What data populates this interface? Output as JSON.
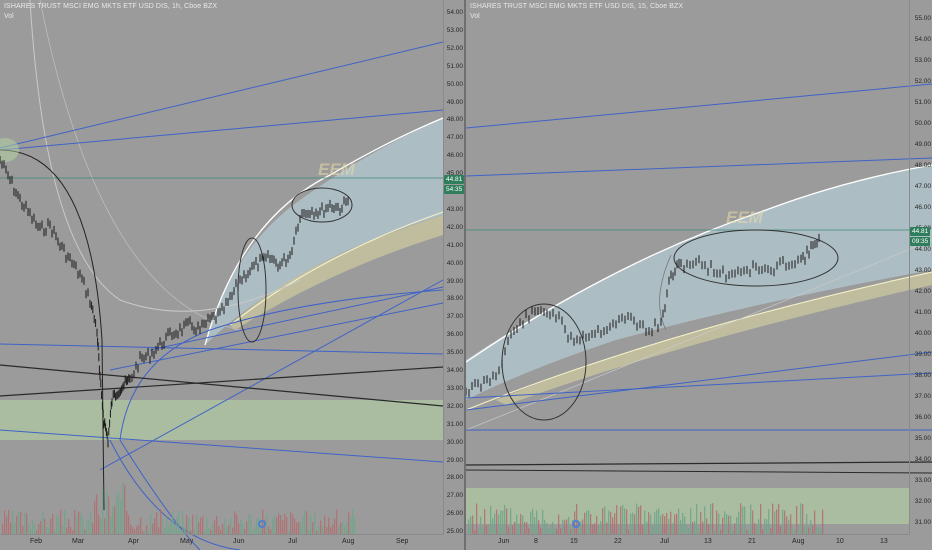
{
  "left_pane": {
    "title": "ISHARES TRUST MSCI EMG MKTS ETF USD DIS, 1h, Cboe BZX",
    "vol_label": "Vol",
    "watermark": "EEM",
    "price_badge_main": "44.81",
    "price_badge_sub": "54:35",
    "price_ticks": [
      "54.00",
      "53.00",
      "52.00",
      "51.00",
      "50.00",
      "49.00",
      "48.00",
      "47.00",
      "46.00",
      "45.00",
      "44.00",
      "43.00",
      "42.00",
      "41.00",
      "40.00",
      "39.00",
      "38.00",
      "37.00",
      "36.00",
      "35.00",
      "34.00",
      "33.00",
      "32.00",
      "31.00",
      "30.00",
      "29.00",
      "28.00",
      "27.00",
      "26.00",
      "25.00"
    ],
    "time_labels": [
      "Feb",
      "Mar",
      "Apr",
      "May",
      "Jun",
      "Jul",
      "Aug",
      "Sep"
    ]
  },
  "right_pane": {
    "title": "ISHARES TRUST MSCI EMG MKTS ETF USD DIS, 15, Cboe BZX",
    "vol_label": "Vol",
    "watermark": "EEM",
    "price_badge_main": "44.81",
    "price_badge_sub": "09:35",
    "price_ticks": [
      "55.00",
      "54.00",
      "53.00",
      "52.00",
      "51.00",
      "50.00",
      "49.00",
      "48.00",
      "47.00",
      "46.00",
      "45.00",
      "44.00",
      "43.00",
      "42.00",
      "41.00",
      "40.00",
      "39.00",
      "38.00",
      "37.00",
      "36.00",
      "35.00",
      "34.00",
      "33.00",
      "32.00",
      "31.00"
    ],
    "time_labels": [
      "Jun",
      "8",
      "15",
      "22",
      "Jul",
      "13",
      "21",
      "Aug",
      "10",
      "13"
    ]
  },
  "colors": {
    "background": "#9b9b9b",
    "badge_green": "#2e7d5b",
    "trendline_blue": "#3f63c7",
    "arc_white": "#ffffff",
    "fill_blue": "#bcd8e6",
    "fill_yellow": "#d9d3a0",
    "fill_green": "#b7d8a6"
  }
}
